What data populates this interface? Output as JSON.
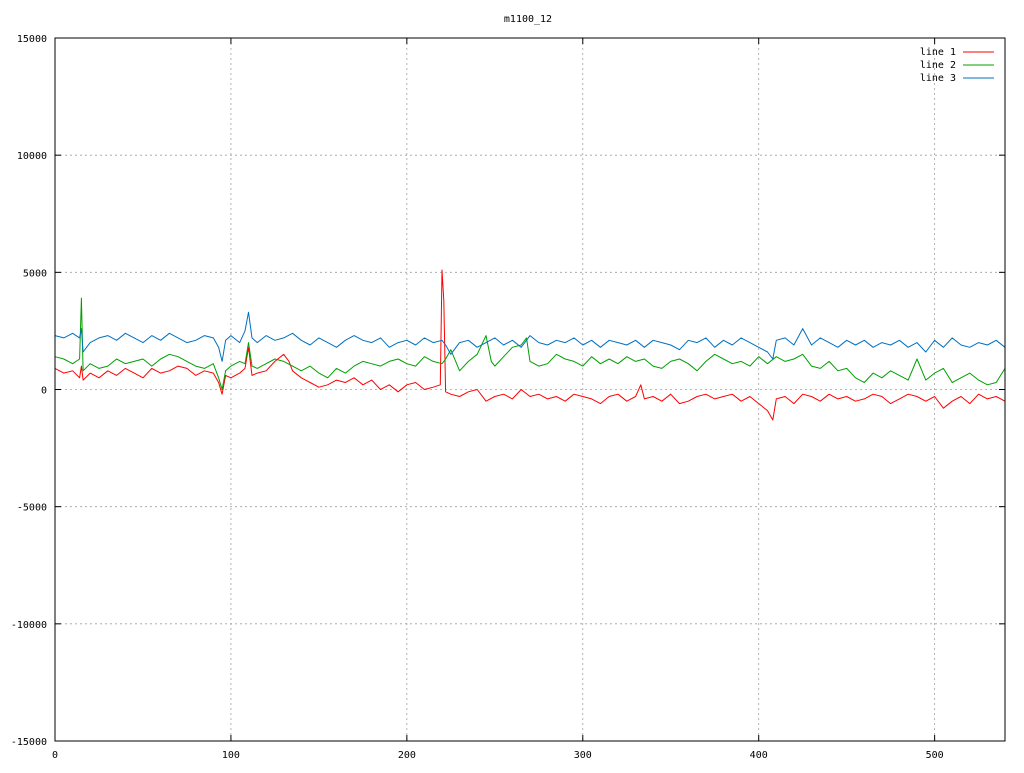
{
  "chart_data": {
    "type": "line",
    "title": "m1100_12",
    "xlabel": "",
    "ylabel": "",
    "xlim": [
      0,
      540
    ],
    "ylim": [
      -15000,
      15000
    ],
    "xticks": [
      0,
      100,
      200,
      300,
      400,
      500
    ],
    "yticks": [
      15000,
      10000,
      5000,
      0,
      -5000,
      -10000,
      -15000
    ],
    "xtick_labels": [
      "0",
      "100",
      "200",
      "300",
      "400",
      "500"
    ],
    "ytick_labels": [
      "15000",
      "10000",
      "5000",
      "0",
      "-5000",
      "-10000",
      "-15000"
    ],
    "grid": true,
    "legend_position": "top-right",
    "series": [
      {
        "name": "line 1",
        "color": "#ff0000",
        "x": [
          0,
          5,
          10,
          14,
          15,
          16,
          20,
          25,
          30,
          35,
          40,
          45,
          50,
          55,
          60,
          65,
          70,
          75,
          80,
          85,
          90,
          93,
          95,
          97,
          100,
          105,
          108,
          110,
          112,
          115,
          120,
          125,
          130,
          133,
          135,
          140,
          145,
          150,
          155,
          160,
          165,
          170,
          175,
          180,
          185,
          190,
          195,
          200,
          205,
          210,
          215,
          219,
          220,
          221,
          222,
          225,
          230,
          235,
          240,
          245,
          250,
          255,
          260,
          265,
          270,
          275,
          280,
          285,
          290,
          295,
          300,
          305,
          310,
          315,
          320,
          325,
          330,
          333,
          335,
          340,
          345,
          350,
          355,
          360,
          365,
          370,
          375,
          380,
          385,
          390,
          395,
          400,
          405,
          408,
          410,
          415,
          420,
          425,
          430,
          435,
          440,
          445,
          450,
          455,
          460,
          465,
          470,
          475,
          480,
          485,
          490,
          495,
          500,
          505,
          510,
          515,
          520,
          525,
          530,
          535,
          540
        ],
        "y": [
          900,
          700,
          800,
          500,
          1000,
          400,
          700,
          500,
          800,
          600,
          900,
          700,
          500,
          900,
          700,
          800,
          1000,
          900,
          600,
          800,
          700,
          300,
          -200,
          600,
          500,
          700,
          900,
          1800,
          600,
          700,
          800,
          1200,
          1500,
          1200,
          800,
          500,
          300,
          100,
          200,
          400,
          300,
          500,
          200,
          400,
          0,
          200,
          -100,
          200,
          300,
          0,
          100,
          200,
          5100,
          3800,
          -100,
          -200,
          -300,
          -100,
          0,
          -500,
          -300,
          -200,
          -400,
          0,
          -300,
          -200,
          -400,
          -300,
          -500,
          -200,
          -300,
          -400,
          -600,
          -300,
          -200,
          -500,
          -300,
          200,
          -400,
          -300,
          -500,
          -200,
          -600,
          -500,
          -300,
          -200,
          -400,
          -300,
          -200,
          -500,
          -300,
          -600,
          -900,
          -1300,
          -400,
          -300,
          -600,
          -200,
          -300,
          -500,
          -200,
          -400,
          -300,
          -500,
          -400,
          -200,
          -300,
          -600,
          -400,
          -200,
          -300,
          -500,
          -300,
          -800,
          -500,
          -300,
          -600,
          -200,
          -400,
          -300,
          -500
        ]
      },
      {
        "name": "line 2",
        "color": "#00a000",
        "x": [
          0,
          5,
          10,
          14,
          15,
          16,
          20,
          25,
          30,
          35,
          40,
          45,
          50,
          55,
          60,
          65,
          70,
          75,
          80,
          85,
          90,
          93,
          95,
          97,
          100,
          105,
          108,
          110,
          112,
          115,
          120,
          125,
          130,
          135,
          140,
          145,
          150,
          155,
          160,
          165,
          170,
          175,
          180,
          185,
          190,
          195,
          200,
          205,
          210,
          215,
          220,
          222,
          225,
          230,
          235,
          240,
          245,
          248,
          250,
          255,
          260,
          265,
          268,
          270,
          275,
          280,
          285,
          290,
          295,
          300,
          305,
          310,
          315,
          320,
          325,
          330,
          335,
          340,
          345,
          350,
          355,
          360,
          365,
          370,
          375,
          380,
          385,
          390,
          395,
          400,
          405,
          410,
          415,
          420,
          425,
          430,
          435,
          440,
          445,
          450,
          455,
          460,
          465,
          470,
          475,
          480,
          485,
          490,
          495,
          500,
          505,
          510,
          515,
          520,
          525,
          530,
          535,
          540
        ],
        "y": [
          1400,
          1300,
          1100,
          1300,
          3900,
          800,
          1100,
          900,
          1000,
          1300,
          1100,
          1200,
          1300,
          1000,
          1300,
          1500,
          1400,
          1200,
          1000,
          900,
          1100,
          500,
          0,
          800,
          1000,
          1200,
          1100,
          2000,
          1000,
          900,
          1100,
          1300,
          1200,
          1000,
          800,
          1000,
          700,
          500,
          900,
          700,
          1000,
          1200,
          1100,
          1000,
          1200,
          1300,
          1100,
          1000,
          1400,
          1200,
          1100,
          1300,
          1700,
          800,
          1200,
          1500,
          2300,
          1200,
          1000,
          1400,
          1800,
          1900,
          2200,
          1200,
          1000,
          1100,
          1500,
          1300,
          1200,
          1000,
          1400,
          1100,
          1300,
          1100,
          1400,
          1200,
          1300,
          1000,
          900,
          1200,
          1300,
          1100,
          800,
          1200,
          1500,
          1300,
          1100,
          1200,
          1000,
          1400,
          1100,
          1400,
          1200,
          1300,
          1500,
          1000,
          900,
          1200,
          800,
          900,
          500,
          300,
          700,
          500,
          800,
          600,
          400,
          1300,
          400,
          700,
          900,
          300,
          500,
          700,
          400,
          200,
          300,
          900
        ]
      },
      {
        "name": "line 3",
        "color": "#0070c0",
        "x": [
          0,
          5,
          10,
          14,
          15,
          16,
          20,
          25,
          30,
          35,
          40,
          45,
          50,
          55,
          60,
          65,
          70,
          75,
          80,
          85,
          90,
          93,
          95,
          97,
          100,
          105,
          108,
          110,
          112,
          115,
          120,
          125,
          130,
          135,
          140,
          145,
          150,
          155,
          160,
          165,
          170,
          175,
          180,
          185,
          190,
          195,
          200,
          205,
          210,
          215,
          220,
          222,
          225,
          230,
          235,
          240,
          245,
          250,
          255,
          260,
          265,
          270,
          275,
          280,
          285,
          290,
          295,
          300,
          305,
          310,
          315,
          320,
          325,
          330,
          335,
          340,
          345,
          350,
          355,
          360,
          365,
          370,
          375,
          380,
          385,
          390,
          395,
          400,
          405,
          408,
          410,
          415,
          420,
          425,
          430,
          435,
          440,
          445,
          450,
          455,
          460,
          465,
          470,
          475,
          480,
          485,
          490,
          495,
          500,
          505,
          510,
          515,
          520,
          525,
          530,
          535,
          540
        ],
        "y": [
          2300,
          2200,
          2400,
          2200,
          2600,
          1600,
          2000,
          2200,
          2300,
          2100,
          2400,
          2200,
          2000,
          2300,
          2100,
          2400,
          2200,
          2000,
          2100,
          2300,
          2200,
          1800,
          1200,
          2100,
          2300,
          2000,
          2500,
          3300,
          2200,
          2000,
          2300,
          2100,
          2200,
          2400,
          2100,
          1900,
          2200,
          2000,
          1800,
          2100,
          2300,
          2100,
          2000,
          2200,
          1800,
          2000,
          2100,
          1900,
          2200,
          2000,
          2100,
          1900,
          1500,
          2000,
          2100,
          1800,
          2000,
          2200,
          1900,
          2100,
          1800,
          2300,
          2000,
          1900,
          2100,
          2000,
          2200,
          1900,
          2100,
          1800,
          2100,
          2000,
          1900,
          2100,
          1800,
          2100,
          2000,
          1900,
          1700,
          2100,
          2000,
          2200,
          1800,
          2100,
          1900,
          2200,
          2000,
          1800,
          1600,
          1300,
          2100,
          2200,
          1900,
          2600,
          1900,
          2200,
          2000,
          1800,
          2100,
          1900,
          2100,
          1800,
          2000,
          1900,
          2100,
          1800,
          2000,
          1600,
          2100,
          1800,
          2200,
          1900,
          1800,
          2000,
          1900,
          2100,
          1800
        ]
      }
    ]
  }
}
